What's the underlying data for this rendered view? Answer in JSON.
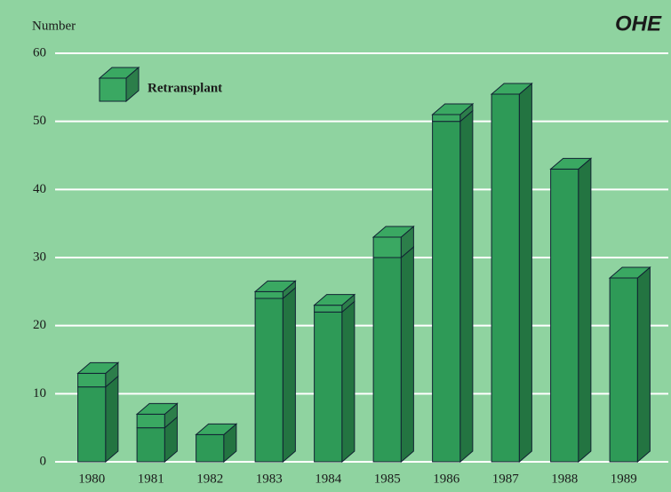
{
  "chart_data": {
    "type": "bar3d_stacked",
    "y_label": "Number",
    "logo": "OHE",
    "categories": [
      "1980",
      "1981",
      "1982",
      "1983",
      "1984",
      "1985",
      "1986",
      "1987",
      "1988",
      "1989"
    ],
    "series": [
      {
        "color": "#2e9a57",
        "values": [
          11,
          5,
          4,
          24,
          22,
          30,
          50,
          54,
          43,
          27
        ]
      },
      {
        "name": "Retransplant",
        "color": "#3aa862",
        "values": [
          2,
          2,
          0,
          1,
          1,
          3,
          1,
          0,
          0,
          0
        ]
      }
    ],
    "ylim": [
      0,
      60
    ],
    "yticks": [
      0,
      10,
      20,
      30,
      40,
      50,
      60
    ],
    "grid": true
  }
}
